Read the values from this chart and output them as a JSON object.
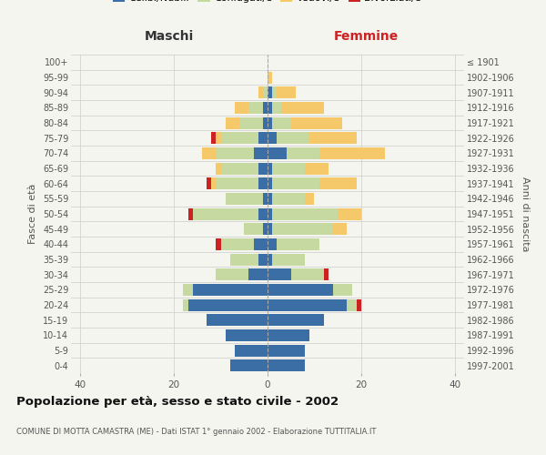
{
  "age_groups": [
    "0-4",
    "5-9",
    "10-14",
    "15-19",
    "20-24",
    "25-29",
    "30-34",
    "35-39",
    "40-44",
    "45-49",
    "50-54",
    "55-59",
    "60-64",
    "65-69",
    "70-74",
    "75-79",
    "80-84",
    "85-89",
    "90-94",
    "95-99",
    "100+"
  ],
  "birth_years": [
    "1997-2001",
    "1992-1996",
    "1987-1991",
    "1982-1986",
    "1977-1981",
    "1972-1976",
    "1967-1971",
    "1962-1966",
    "1957-1961",
    "1952-1956",
    "1947-1951",
    "1942-1946",
    "1937-1941",
    "1932-1936",
    "1927-1931",
    "1922-1926",
    "1917-1921",
    "1912-1916",
    "1907-1911",
    "1902-1906",
    "≤ 1901"
  ],
  "male": {
    "celibi": [
      8,
      7,
      9,
      13,
      17,
      16,
      4,
      2,
      3,
      1,
      2,
      1,
      2,
      2,
      3,
      2,
      1,
      1,
      0,
      0,
      0
    ],
    "coniugati": [
      0,
      0,
      0,
      0,
      1,
      2,
      7,
      6,
      7,
      4,
      14,
      8,
      9,
      8,
      8,
      8,
      5,
      3,
      1,
      0,
      0
    ],
    "vedovi": [
      0,
      0,
      0,
      0,
      0,
      0,
      0,
      0,
      0,
      0,
      0,
      0,
      1,
      1,
      3,
      1,
      3,
      3,
      1,
      0,
      0
    ],
    "divorziati": [
      0,
      0,
      0,
      0,
      0,
      0,
      0,
      0,
      1,
      0,
      1,
      0,
      1,
      0,
      0,
      1,
      0,
      0,
      0,
      0,
      0
    ]
  },
  "female": {
    "nubili": [
      8,
      8,
      9,
      12,
      17,
      14,
      5,
      1,
      2,
      1,
      1,
      1,
      1,
      1,
      4,
      2,
      1,
      1,
      1,
      0,
      0
    ],
    "coniugate": [
      0,
      0,
      0,
      0,
      2,
      4,
      7,
      7,
      9,
      13,
      14,
      7,
      10,
      7,
      7,
      7,
      4,
      2,
      1,
      0,
      0
    ],
    "vedove": [
      0,
      0,
      0,
      0,
      0,
      0,
      0,
      0,
      0,
      3,
      5,
      2,
      8,
      5,
      14,
      10,
      11,
      9,
      4,
      1,
      0
    ],
    "divorziate": [
      0,
      0,
      0,
      0,
      1,
      0,
      1,
      0,
      0,
      0,
      0,
      0,
      0,
      0,
      0,
      0,
      0,
      0,
      0,
      0,
      0
    ]
  },
  "colors": {
    "celibi": "#3a6ea5",
    "coniugati": "#c5d9a0",
    "vedovi": "#f5c96a",
    "divorziati": "#cc2222"
  },
  "xlim": 42,
  "title": "Popolazione per età, sesso e stato civile - 2002",
  "subtitle": "COMUNE DI MOTTA CAMASTRA (ME) - Dati ISTAT 1° gennaio 2002 - Elaborazione TUTTITALIA.IT",
  "ylabel_left": "Fasce di età",
  "ylabel_right": "Anni di nascita",
  "xlabel_maschi": "Maschi",
  "xlabel_femmine": "Femmine",
  "background_color": "#f5f5f0"
}
